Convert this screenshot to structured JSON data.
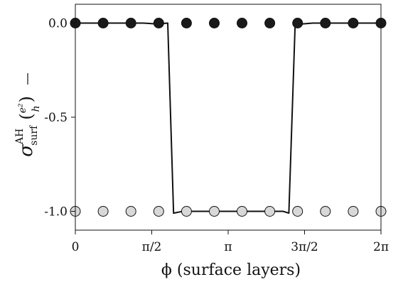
{
  "chart_data": {
    "type": "line",
    "xlabel": "ϕ (surface layers)",
    "ylabel": {
      "symbol": "σ",
      "superscript": "AH",
      "subscript": "surf",
      "unit_numerator": "e²",
      "unit_denominator": "h"
    },
    "xlim": [
      0,
      6.2832
    ],
    "ylim": [
      -1.1,
      0.1
    ],
    "x_ticks": [
      {
        "value": 0,
        "label": "0"
      },
      {
        "value": 1.5708,
        "label": "π/2"
      },
      {
        "value": 3.1416,
        "label": "π"
      },
      {
        "value": 4.7124,
        "label": "3π/2"
      },
      {
        "value": 6.2832,
        "label": "2π"
      }
    ],
    "y_ticks": [
      {
        "value": 0.0,
        "label": "0.0"
      },
      {
        "value": -0.5,
        "label": "-0.5"
      },
      {
        "value": -1.0,
        "label": "-1.0"
      }
    ],
    "grid": false,
    "series": [
      {
        "kind": "line",
        "color": "#111111",
        "x": [
          0,
          0.3,
          0.57,
          0.84,
          1.12,
          1.4,
          1.68,
          1.9,
          2.02,
          2.2,
          2.52,
          2.85,
          3.14,
          3.42,
          3.71,
          4.0,
          4.27,
          4.39,
          4.52,
          4.66,
          4.88,
          5.1,
          5.4,
          5.7,
          6.0,
          6.2832
        ],
        "y": [
          0.0,
          0.0,
          0.0,
          0.0,
          0.0,
          0.0,
          -0.005,
          0.0,
          -1.01,
          -1.0,
          -1.0,
          -1.0,
          -1.0,
          -1.0,
          -1.0,
          -1.0,
          -1.0,
          -1.01,
          0.0,
          -0.005,
          0.0,
          0.0,
          0.0,
          0.0,
          0.0,
          0.0
        ]
      },
      {
        "kind": "scatter",
        "marker_fill": "#1a1a1a",
        "x": [
          0,
          0.5712,
          1.1424,
          1.7136,
          2.2848,
          2.856,
          3.4272,
          3.9984,
          4.5696,
          5.1408,
          5.712,
          6.2832
        ],
        "y": [
          0,
          0,
          0,
          0,
          0,
          0,
          0,
          0,
          0,
          0,
          0,
          0
        ]
      },
      {
        "kind": "scatter",
        "marker_fill": "#d8d8d8",
        "x": [
          0,
          0.5712,
          1.1424,
          1.7136,
          2.2848,
          2.856,
          3.4272,
          3.9984,
          4.5696,
          5.1408,
          5.712,
          6.2832
        ],
        "y": [
          -1,
          -1,
          -1,
          -1,
          -1,
          -1,
          -1,
          -1,
          -1,
          -1,
          -1,
          -1
        ]
      }
    ]
  }
}
